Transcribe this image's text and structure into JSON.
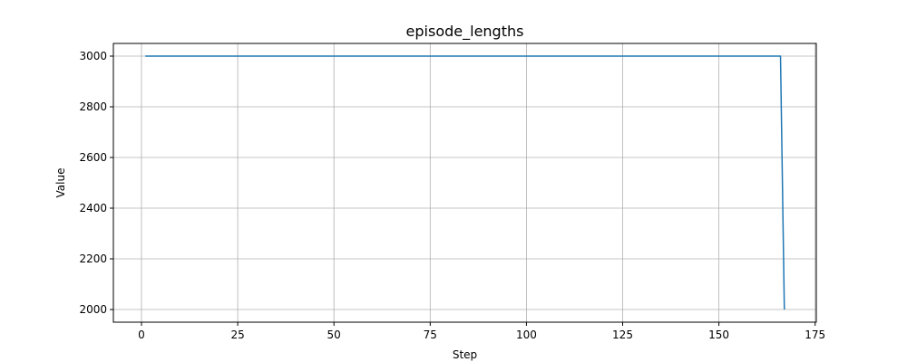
{
  "chart_data": {
    "type": "line",
    "title": "episode_lengths",
    "xlabel": "Step",
    "ylabel": "Value",
    "xlim": [
      -7.3,
      175.3
    ],
    "ylim": [
      1950,
      3050
    ],
    "xticks": [
      0,
      25,
      50,
      75,
      100,
      125,
      150,
      175
    ],
    "yticks": [
      2000,
      2200,
      2400,
      2600,
      2800,
      3000
    ],
    "grid": true,
    "series": [
      {
        "color": "#1f77b4",
        "x": [
          1,
          166,
          167
        ],
        "y": [
          3000,
          3000,
          2000
        ]
      }
    ]
  }
}
